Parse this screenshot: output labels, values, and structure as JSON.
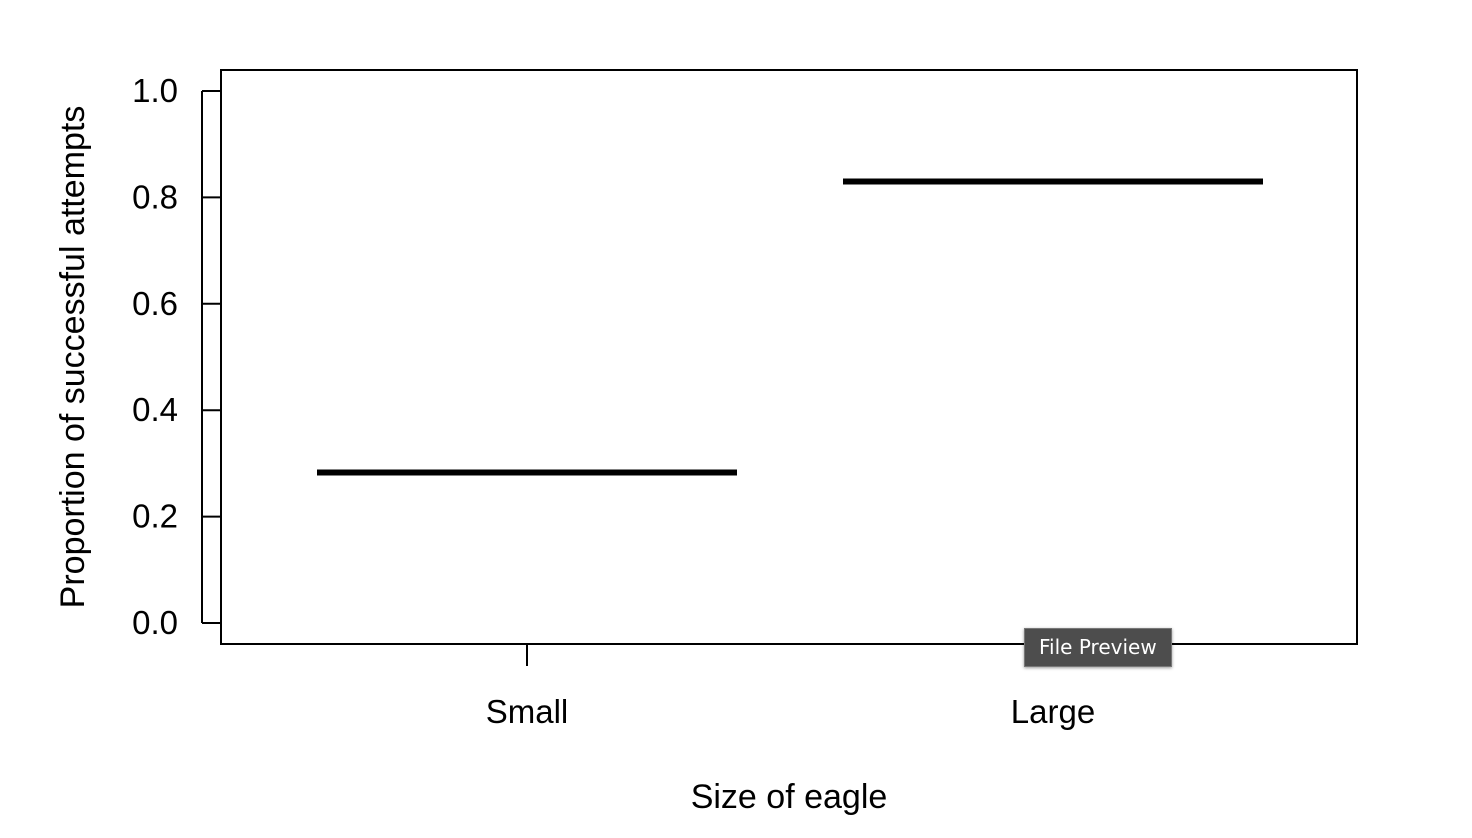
{
  "chart_data": {
    "type": "bar",
    "categories": [
      "Small",
      "Large"
    ],
    "values": [
      0.283,
      0.83
    ],
    "xlabel": "Size of eagle",
    "ylabel": "Proportion of successful attempts",
    "ylim": [
      0.0,
      1.0
    ],
    "yticks": [
      "0.0",
      "0.2",
      "0.4",
      "0.6",
      "0.8",
      "1.0"
    ],
    "grid": false,
    "mark_color": "#000000"
  },
  "tooltip": {
    "text": "File Preview"
  }
}
